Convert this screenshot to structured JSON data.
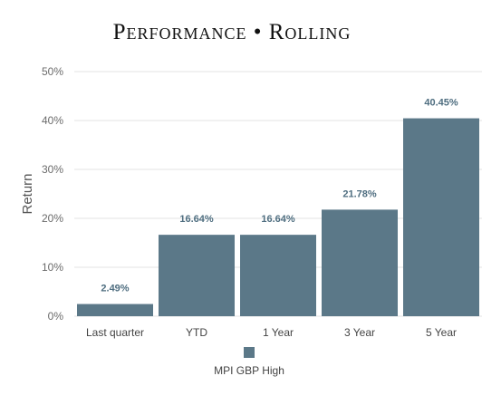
{
  "chart_data": {
    "type": "bar",
    "title": "Performance • Rolling",
    "xlabel": "",
    "ylabel": "Return",
    "categories": [
      "Last quarter",
      "YTD",
      "1 Year",
      "3 Year",
      "5 Year"
    ],
    "series": [
      {
        "name": "MPI GBP High",
        "values": [
          2.49,
          16.64,
          16.64,
          21.78,
          40.45
        ],
        "data_labels": [
          "2.49%",
          "16.64%",
          "16.64%",
          "21.78%",
          "40.45%"
        ]
      }
    ],
    "ylim": [
      0,
      50
    ],
    "yticks": [
      0,
      10,
      20,
      30,
      40,
      50
    ],
    "ytick_labels": [
      "0%",
      "10%",
      "20%",
      "30%",
      "40%",
      "50%"
    ],
    "grid": true,
    "legend_position": "bottom",
    "colors": {
      "bar": "#5b7888",
      "data_label": "#4f6e80",
      "grid": "#e3e3e3",
      "axis_text": "#6b6b6b"
    }
  }
}
